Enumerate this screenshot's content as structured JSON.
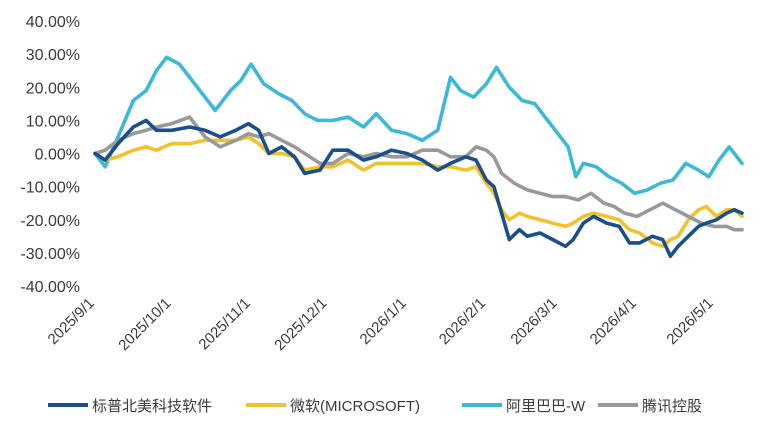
{
  "chart_data": {
    "type": "line",
    "title": "",
    "xlabel": "",
    "ylabel": "",
    "ylim": [
      -40,
      40
    ],
    "y_ticks": [
      40,
      30,
      20,
      10,
      0,
      -10,
      -20,
      -30,
      -40
    ],
    "y_tick_labels": [
      "40.00%",
      "30.00%",
      "20.00%",
      "10.00%",
      "0.00%",
      "-10.00%",
      "-20.00%",
      "-30.00%",
      "-40.00%"
    ],
    "x_range": [
      "2025/9/1",
      "2026/5/12"
    ],
    "x_ticks": [
      "2025/9/1",
      "2025/10/1",
      "2025/11/1",
      "2025/12/1",
      "2026/1/1",
      "2026/2/1",
      "2026/3/1",
      "2026/4/1",
      "2026/5/1"
    ],
    "grid": false,
    "legend_position": "bottom",
    "series": [
      {
        "name": "标普北美科技软件",
        "color": "#1a4f8b",
        "points": [
          [
            "2025/9/1",
            0
          ],
          [
            "2025/9/5",
            -2
          ],
          [
            "2025/9/10",
            3
          ],
          [
            "2025/9/16",
            8
          ],
          [
            "2025/9/21",
            10
          ],
          [
            "2025/9/25",
            7
          ],
          [
            "2025/10/1",
            7
          ],
          [
            "2025/10/8",
            8
          ],
          [
            "2025/10/14",
            7
          ],
          [
            "2025/10/20",
            5
          ],
          [
            "2025/10/26",
            7
          ],
          [
            "2025/10/31",
            9
          ],
          [
            "2025/11/4",
            7
          ],
          [
            "2025/11/8",
            0
          ],
          [
            "2025/11/13",
            2
          ],
          [
            "2025/11/18",
            -1
          ],
          [
            "2025/11/22",
            -6
          ],
          [
            "2025/11/28",
            -5
          ],
          [
            "2025/12/3",
            1
          ],
          [
            "2025/12/9",
            1
          ],
          [
            "2025/12/15",
            -2
          ],
          [
            "2025/12/20",
            -1
          ],
          [
            "2025/12/26",
            1
          ],
          [
            "2026/1/1",
            0
          ],
          [
            "2026/1/7",
            -2
          ],
          [
            "2026/1/13",
            -5
          ],
          [
            "2026/1/18",
            -3
          ],
          [
            "2026/1/24",
            -1
          ],
          [
            "2026/1/28",
            -2
          ],
          [
            "2026/2/1",
            -8
          ],
          [
            "2026/2/4",
            -10
          ],
          [
            "2026/2/7",
            -18
          ],
          [
            "2026/2/10",
            -26
          ],
          [
            "2026/2/14",
            -23
          ],
          [
            "2026/2/17",
            -25
          ],
          [
            "2026/2/22",
            -24
          ],
          [
            "2026/2/27",
            -26
          ],
          [
            "2026/3/4",
            -28
          ],
          [
            "2026/3/7",
            -26
          ],
          [
            "2026/3/11",
            -21
          ],
          [
            "2026/3/15",
            -19
          ],
          [
            "2026/3/20",
            -21
          ],
          [
            "2026/3/25",
            -22
          ],
          [
            "2026/3/29",
            -27
          ],
          [
            "2026/4/2",
            -27
          ],
          [
            "2026/4/7",
            -25
          ],
          [
            "2026/4/11",
            -26
          ],
          [
            "2026/4/14",
            -31
          ],
          [
            "2026/4/17",
            -28
          ],
          [
            "2026/4/21",
            -25
          ],
          [
            "2026/4/25",
            -22
          ],
          [
            "2026/4/28",
            -21
          ],
          [
            "2026/5/2",
            -20
          ],
          [
            "2026/5/6",
            -18
          ],
          [
            "2026/5/9",
            -17
          ],
          [
            "2026/5/12",
            -18
          ]
        ]
      },
      {
        "name": "微软(MICROSOFT)",
        "color": "#f2c12e",
        "points": [
          [
            "2025/9/1",
            0
          ],
          [
            "2025/9/5",
            -2
          ],
          [
            "2025/9/10",
            -1
          ],
          [
            "2025/9/16",
            1
          ],
          [
            "2025/9/21",
            2
          ],
          [
            "2025/9/25",
            1
          ],
          [
            "2025/10/1",
            3
          ],
          [
            "2025/10/8",
            3
          ],
          [
            "2025/10/14",
            4
          ],
          [
            "2025/10/20",
            4
          ],
          [
            "2025/10/26",
            4
          ],
          [
            "2025/10/31",
            5
          ],
          [
            "2025/11/4",
            3
          ],
          [
            "2025/11/8",
            0
          ],
          [
            "2025/11/13",
            0
          ],
          [
            "2025/11/18",
            -1
          ],
          [
            "2025/11/22",
            -5
          ],
          [
            "2025/11/28",
            -4
          ],
          [
            "2025/12/3",
            -4
          ],
          [
            "2025/12/9",
            -2
          ],
          [
            "2025/12/15",
            -5
          ],
          [
            "2025/12/20",
            -3
          ],
          [
            "2025/12/26",
            -3
          ],
          [
            "2026/1/1",
            -3
          ],
          [
            "2026/1/7",
            -3
          ],
          [
            "2026/1/13",
            -4
          ],
          [
            "2026/1/18",
            -4
          ],
          [
            "2026/1/24",
            -5
          ],
          [
            "2026/1/28",
            -4
          ],
          [
            "2026/2/1",
            -9
          ],
          [
            "2026/2/4",
            -12
          ],
          [
            "2026/2/7",
            -17
          ],
          [
            "2026/2/10",
            -20
          ],
          [
            "2026/2/14",
            -18
          ],
          [
            "2026/2/17",
            -19
          ],
          [
            "2026/2/22",
            -20
          ],
          [
            "2026/2/27",
            -21
          ],
          [
            "2026/3/4",
            -22
          ],
          [
            "2026/3/7",
            -21
          ],
          [
            "2026/3/11",
            -19
          ],
          [
            "2026/3/15",
            -18
          ],
          [
            "2026/3/20",
            -19
          ],
          [
            "2026/3/25",
            -20
          ],
          [
            "2026/3/29",
            -23
          ],
          [
            "2026/4/2",
            -24
          ],
          [
            "2026/4/7",
            -27
          ],
          [
            "2026/4/11",
            -28
          ],
          [
            "2026/4/14",
            -26
          ],
          [
            "2026/4/17",
            -25
          ],
          [
            "2026/4/21",
            -20
          ],
          [
            "2026/4/25",
            -17
          ],
          [
            "2026/4/28",
            -16
          ],
          [
            "2026/5/2",
            -19
          ],
          [
            "2026/5/6",
            -17
          ],
          [
            "2026/5/9",
            -17
          ],
          [
            "2026/5/12",
            -19
          ]
        ]
      },
      {
        "name": "阿里巴巴-W",
        "color": "#3bb8da",
        "points": [
          [
            "2025/9/1",
            0
          ],
          [
            "2025/9/5",
            -4
          ],
          [
            "2025/9/10",
            5
          ],
          [
            "2025/9/16",
            16
          ],
          [
            "2025/9/21",
            19
          ],
          [
            "2025/9/25",
            25
          ],
          [
            "2025/9/29",
            29
          ],
          [
            "2025/10/4",
            27
          ],
          [
            "2025/10/9",
            22
          ],
          [
            "2025/10/14",
            17
          ],
          [
            "2025/10/18",
            13
          ],
          [
            "2025/10/24",
            19
          ],
          [
            "2025/10/28",
            22
          ],
          [
            "2025/11/1",
            27
          ],
          [
            "2025/11/6",
            21
          ],
          [
            "2025/11/12",
            18
          ],
          [
            "2025/11/17",
            16
          ],
          [
            "2025/11/22",
            12
          ],
          [
            "2025/11/27",
            10
          ],
          [
            "2025/12/3",
            10
          ],
          [
            "2025/12/9",
            11
          ],
          [
            "2025/12/15",
            8
          ],
          [
            "2025/12/20",
            12
          ],
          [
            "2025/12/26",
            7
          ],
          [
            "2026/1/1",
            6
          ],
          [
            "2026/1/7",
            4
          ],
          [
            "2026/1/13",
            7
          ],
          [
            "2026/1/18",
            23
          ],
          [
            "2026/1/22",
            19
          ],
          [
            "2026/1/27",
            17
          ],
          [
            "2026/2/1",
            21
          ],
          [
            "2026/2/5",
            26
          ],
          [
            "2026/2/10",
            20
          ],
          [
            "2026/2/15",
            16
          ],
          [
            "2026/2/20",
            15
          ],
          [
            "2026/2/25",
            10
          ],
          [
            "2026/3/1",
            6
          ],
          [
            "2026/3/5",
            2
          ],
          [
            "2026/3/8",
            -7
          ],
          [
            "2026/3/11",
            -3
          ],
          [
            "2026/3/16",
            -4
          ],
          [
            "2026/3/21",
            -7
          ],
          [
            "2026/3/26",
            -9
          ],
          [
            "2026/3/31",
            -12
          ],
          [
            "2026/4/5",
            -11
          ],
          [
            "2026/4/10",
            -9
          ],
          [
            "2026/4/15",
            -8
          ],
          [
            "2026/4/20",
            -3
          ],
          [
            "2026/4/25",
            -5
          ],
          [
            "2026/4/29",
            -7
          ],
          [
            "2026/5/3",
            -2
          ],
          [
            "2026/5/7",
            2
          ],
          [
            "2026/5/12",
            -3
          ]
        ]
      },
      {
        "name": "腾讯控股",
        "color": "#999999",
        "points": [
          [
            "2025/9/1",
            0
          ],
          [
            "2025/9/5",
            1
          ],
          [
            "2025/9/10",
            4
          ],
          [
            "2025/9/16",
            6
          ],
          [
            "2025/9/21",
            7
          ],
          [
            "2025/9/25",
            8
          ],
          [
            "2025/10/1",
            9
          ],
          [
            "2025/10/8",
            11
          ],
          [
            "2025/10/14",
            5
          ],
          [
            "2025/10/20",
            2
          ],
          [
            "2025/10/26",
            4
          ],
          [
            "2025/10/31",
            6
          ],
          [
            "2025/11/4",
            5
          ],
          [
            "2025/11/8",
            6
          ],
          [
            "2025/11/13",
            4
          ],
          [
            "2025/11/18",
            2
          ],
          [
            "2025/11/22",
            0
          ],
          [
            "2025/11/28",
            -3
          ],
          [
            "2025/12/3",
            -3
          ],
          [
            "2025/12/9",
            0
          ],
          [
            "2025/12/15",
            -1
          ],
          [
            "2025/12/20",
            0
          ],
          [
            "2025/12/26",
            -1
          ],
          [
            "2026/1/1",
            -1
          ],
          [
            "2026/1/7",
            1
          ],
          [
            "2026/1/13",
            1
          ],
          [
            "2026/1/18",
            -1
          ],
          [
            "2026/1/24",
            -1
          ],
          [
            "2026/1/28",
            2
          ],
          [
            "2026/2/1",
            1
          ],
          [
            "2026/2/4",
            -1
          ],
          [
            "2026/2/7",
            -6
          ],
          [
            "2026/2/12",
            -9
          ],
          [
            "2026/2/17",
            -11
          ],
          [
            "2026/2/22",
            -12
          ],
          [
            "2026/2/27",
            -13
          ],
          [
            "2026/3/4",
            -13
          ],
          [
            "2026/3/9",
            -14
          ],
          [
            "2026/3/14",
            -12
          ],
          [
            "2026/3/19",
            -15
          ],
          [
            "2026/3/23",
            -16
          ],
          [
            "2026/3/27",
            -18
          ],
          [
            "2026/4/1",
            -19
          ],
          [
            "2026/4/6",
            -17
          ],
          [
            "2026/4/11",
            -15
          ],
          [
            "2026/4/16",
            -17
          ],
          [
            "2026/4/21",
            -19
          ],
          [
            "2026/4/26",
            -21
          ],
          [
            "2026/5/1",
            -22
          ],
          [
            "2026/5/6",
            -22
          ],
          [
            "2026/5/9",
            -23
          ],
          [
            "2026/5/12",
            -23
          ]
        ]
      }
    ]
  }
}
